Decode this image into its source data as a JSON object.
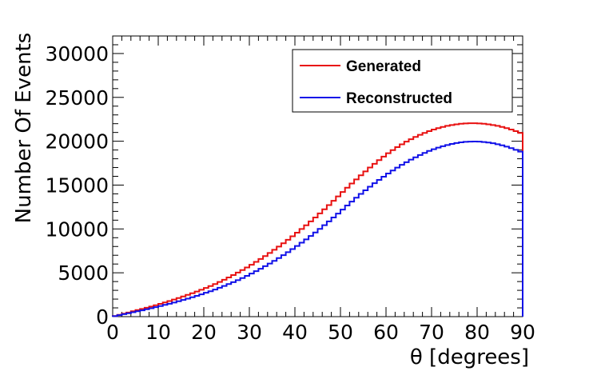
{
  "chart_data": {
    "type": "line",
    "xlabel": "θ [degrees]",
    "ylabel": "Number Of Events",
    "xlim": [
      0,
      90
    ],
    "ylim": [
      0,
      32000
    ],
    "x_ticks": [
      0,
      10,
      20,
      30,
      40,
      50,
      60,
      70,
      80,
      90
    ],
    "y_ticks": [
      0,
      5000,
      10000,
      15000,
      20000,
      25000,
      30000
    ],
    "grid": false,
    "legend_position": "top-right",
    "bin_width": 1,
    "series": [
      {
        "name": "Generated",
        "color": "#e81010",
        "values": [
          72,
          208,
          340,
          470,
          610,
          750,
          880,
          1010,
          1150,
          1300,
          1460,
          1620,
          1780,
          1950,
          2120,
          2300,
          2480,
          2670,
          2860,
          3060,
          3270,
          3490,
          3720,
          3960,
          4210,
          4470,
          4740,
          5020,
          5310,
          5610,
          5920,
          6240,
          6570,
          6910,
          7260,
          7620,
          7990,
          8370,
          8760,
          9160,
          9570,
          9990,
          10420,
          10860,
          11310,
          11770,
          12240,
          12720,
          13210,
          13710,
          14210,
          14700,
          15180,
          15650,
          16110,
          16560,
          17000,
          17430,
          17850,
          18250,
          18630,
          18990,
          19330,
          19650,
          19950,
          20230,
          20490,
          20730,
          20950,
          21150,
          21330,
          21490,
          21630,
          21750,
          21850,
          21930,
          21990,
          22030,
          22050,
          22050,
          22030,
          21990,
          21930,
          21850,
          21750,
          21630,
          21490,
          21330,
          21150,
          20950
        ]
      },
      {
        "name": "Reconstructed",
        "color": "#1010e8",
        "values": [
          60,
          170,
          280,
          390,
          500,
          610,
          720,
          840,
          960,
          1080,
          1210,
          1340,
          1470,
          1610,
          1750,
          1900,
          2050,
          2210,
          2370,
          2540,
          2720,
          2900,
          3090,
          3290,
          3500,
          3710,
          3930,
          4160,
          4400,
          4650,
          4910,
          5180,
          5460,
          5750,
          6050,
          6360,
          6680,
          7010,
          7350,
          7700,
          8060,
          8430,
          8810,
          9200,
          9600,
          10010,
          10430,
          10860,
          11300,
          11750,
          12210,
          12670,
          13120,
          13560,
          13990,
          14410,
          14820,
          15210,
          15590,
          15960,
          16320,
          16660,
          16990,
          17310,
          17610,
          17900,
          18170,
          18430,
          18670,
          18890,
          19090,
          19270,
          19430,
          19570,
          19690,
          19790,
          19870,
          19930,
          19960,
          19970,
          19950,
          19910,
          19850,
          19770,
          19660,
          19530,
          19380,
          19210,
          19020,
          18810
        ]
      }
    ]
  },
  "legend": {
    "generated_label": "Generated",
    "reconstructed_label": "Reconstructed"
  }
}
